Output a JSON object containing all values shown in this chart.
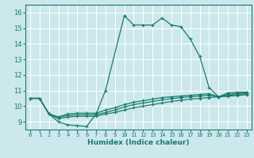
{
  "xlabel": "Humidex (Indice chaleur)",
  "bg_color": "#cce8ec",
  "line_color": "#1a7a6e",
  "grid_color": "#ffffff",
  "xlim": [
    -0.5,
    23.5
  ],
  "ylim": [
    8.5,
    16.5
  ],
  "xticks": [
    0,
    1,
    2,
    3,
    4,
    5,
    6,
    7,
    8,
    9,
    10,
    11,
    12,
    13,
    14,
    15,
    16,
    17,
    18,
    19,
    20,
    21,
    22,
    23
  ],
  "yticks": [
    9,
    10,
    11,
    12,
    13,
    14,
    15,
    16
  ],
  "series": [
    {
      "x": [
        0,
        1,
        2,
        3,
        4,
        5,
        6,
        7,
        8,
        10,
        11,
        12,
        13,
        14,
        15,
        16,
        17,
        18,
        19,
        20,
        21,
        22,
        23
      ],
      "y": [
        10.5,
        10.5,
        9.5,
        9.0,
        8.8,
        8.75,
        8.7,
        9.5,
        11.0,
        15.8,
        15.2,
        15.2,
        15.2,
        15.65,
        15.2,
        15.1,
        14.3,
        13.2,
        11.2,
        10.6,
        10.85,
        10.9,
        10.9
      ]
    },
    {
      "x": [
        0,
        1,
        2,
        3,
        4,
        5,
        6,
        7,
        8,
        9,
        10,
        11,
        12,
        13,
        14,
        15,
        16,
        17,
        18,
        19,
        20,
        21,
        22,
        23
      ],
      "y": [
        10.5,
        10.5,
        9.5,
        9.3,
        9.5,
        9.55,
        9.55,
        9.55,
        9.75,
        9.9,
        10.1,
        10.25,
        10.35,
        10.45,
        10.55,
        10.6,
        10.65,
        10.7,
        10.75,
        10.8,
        10.6,
        10.75,
        10.82,
        10.87
      ]
    },
    {
      "x": [
        0,
        1,
        2,
        3,
        4,
        5,
        6,
        7,
        8,
        9,
        10,
        11,
        12,
        13,
        14,
        15,
        16,
        17,
        18,
        19,
        20,
        21,
        22,
        23
      ],
      "y": [
        10.5,
        10.5,
        9.5,
        9.3,
        9.4,
        9.45,
        9.45,
        9.45,
        9.6,
        9.75,
        9.95,
        10.1,
        10.2,
        10.3,
        10.4,
        10.48,
        10.55,
        10.6,
        10.65,
        10.7,
        10.6,
        10.68,
        10.75,
        10.8
      ]
    },
    {
      "x": [
        0,
        1,
        2,
        3,
        4,
        5,
        6,
        7,
        8,
        9,
        10,
        11,
        12,
        13,
        14,
        15,
        16,
        17,
        18,
        19,
        20,
        21,
        22,
        23
      ],
      "y": [
        10.5,
        10.5,
        9.5,
        9.2,
        9.3,
        9.35,
        9.35,
        9.35,
        9.5,
        9.6,
        9.75,
        9.9,
        10.0,
        10.1,
        10.2,
        10.3,
        10.38,
        10.45,
        10.5,
        10.55,
        10.6,
        10.63,
        10.68,
        10.73
      ]
    }
  ]
}
